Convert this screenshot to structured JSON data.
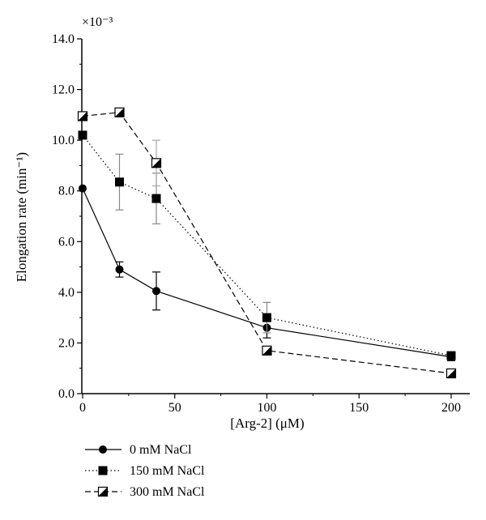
{
  "chart_data": {
    "type": "line",
    "xlabel": "[Arg-2] (μM)",
    "ylabel": "Elongation rate (min⁻¹)",
    "y_multiplier": "×10⁻³",
    "xlim": [
      0,
      210
    ],
    "ylim": [
      0,
      14
    ],
    "x_ticks": [
      0,
      50,
      100,
      150,
      200
    ],
    "y_ticks": [
      "0.0",
      "2.0",
      "4.0",
      "6.0",
      "8.0",
      "10.0",
      "12.0",
      "14.0"
    ],
    "grid": false,
    "legend_placement": "bottom-left",
    "series": [
      {
        "name": "0 mM NaCl",
        "line_style": "solid",
        "marker": "circle",
        "x": [
          0,
          20,
          40,
          100,
          200
        ],
        "y": [
          8.1,
          4.9,
          4.05,
          2.6,
          1.45
        ],
        "error": [
          0,
          0.3,
          0.75,
          0.4,
          0.15
        ]
      },
      {
        "name": "150 mM NaCl",
        "line_style": "dotted",
        "marker": "square",
        "x": [
          0,
          20,
          40,
          100,
          200
        ],
        "y": [
          10.2,
          8.35,
          7.7,
          3.0,
          1.5
        ],
        "error": [
          0,
          1.1,
          1.0,
          0.6,
          0
        ]
      },
      {
        "name": "300 mM NaCl",
        "line_style": "dashed",
        "marker": "half-filled-square",
        "x": [
          0,
          20,
          40,
          100,
          200
        ],
        "y": [
          10.95,
          11.1,
          9.1,
          1.7,
          0.8
        ],
        "error": [
          0,
          0,
          0.9,
          0,
          0
        ]
      }
    ]
  }
}
